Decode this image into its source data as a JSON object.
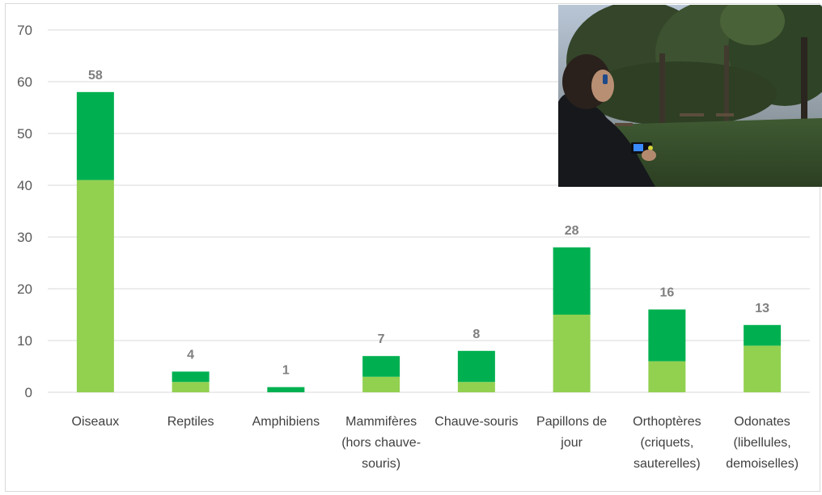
{
  "chart_data": {
    "type": "bar",
    "stacked": true,
    "categories": [
      [
        "Oiseaux"
      ],
      [
        "Reptiles"
      ],
      [
        "Amphibiens"
      ],
      [
        "Mammifères",
        "(hors chauve-",
        "souris)"
      ],
      [
        "Chauve-souris"
      ],
      [
        "Papillons de",
        "jour"
      ],
      [
        "Orthoptères",
        "(criquets,",
        "sauterelles)"
      ],
      [
        "Odonates",
        "(libellules,",
        "demoiselles)"
      ]
    ],
    "series": [
      {
        "values": [
          41,
          2,
          0,
          3,
          2,
          15,
          6,
          9
        ],
        "color": "#92d050"
      },
      {
        "values": [
          17,
          2,
          1,
          4,
          6,
          13,
          10,
          4
        ],
        "color": "#00b050"
      }
    ],
    "totals": [
      58,
      4,
      1,
      7,
      8,
      28,
      16,
      13
    ],
    "ylim": [
      0,
      70
    ],
    "yticks": [
      0,
      10,
      20,
      30,
      40,
      50,
      60,
      70
    ],
    "grid": true,
    "legend": "none",
    "title": "",
    "xlabel": "",
    "ylabel": ""
  },
  "photo": {
    "subject": "person holding a bat detector in a park at dusk"
  }
}
